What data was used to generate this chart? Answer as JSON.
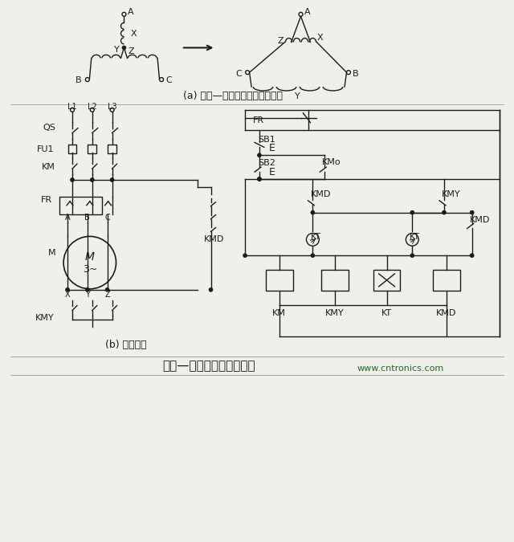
{
  "bg_color": "#f0f0eb",
  "line_color": "#1a1a1a",
  "title": "星形—三角形启动控制线路",
  "subtitle_a": "(a) 星形—三角形转换绕组连接图",
  "subtitle_b": "(b) 控制线路",
  "website": "www.cntronics.com",
  "font_size_label": 9,
  "font_size_small": 8,
  "font_size_title": 11
}
